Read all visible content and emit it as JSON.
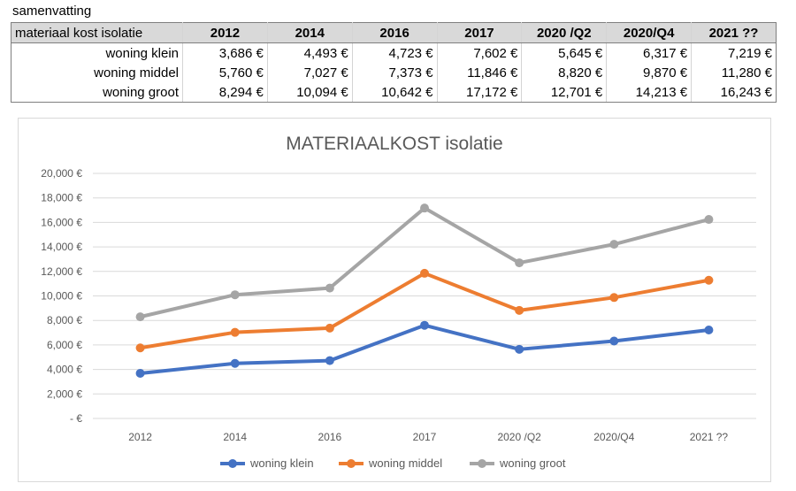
{
  "caption": "samenvatting",
  "table": {
    "header_label": "materiaal kost isolatie",
    "columns": [
      "2012",
      "2014",
      "2016",
      "2017",
      "2020 /Q2",
      "2020/Q4",
      "2021 ??"
    ],
    "rows": [
      {
        "label": "woning klein",
        "values": [
          "3,686 €",
          "4,493 €",
          "4,723 €",
          "7,602 €",
          "5,645 €",
          "6,317 €",
          "7,219 €"
        ]
      },
      {
        "label": "woning middel",
        "values": [
          "5,760 €",
          "7,027 €",
          "7,373 €",
          "11,846 €",
          "8,820 €",
          "9,870 €",
          "11,280 €"
        ]
      },
      {
        "label": "woning groot",
        "values": [
          "8,294 €",
          "10,094 €",
          "10,642 €",
          "17,172 €",
          "12,701 €",
          "14,213 €",
          "16,243 €"
        ]
      }
    ]
  },
  "chart_data": {
    "type": "line",
    "title": "MATERIAALKOST isolatie",
    "categories": [
      "2012",
      "2014",
      "2016",
      "2017",
      "2020 /Q2",
      "2020/Q4",
      "2021 ??"
    ],
    "series": [
      {
        "name": "woning klein",
        "color": "#4472c4",
        "values": [
          3686,
          4493,
          4723,
          7602,
          5645,
          6317,
          7219
        ]
      },
      {
        "name": "woning middel",
        "color": "#ed7d31",
        "values": [
          5760,
          7027,
          7373,
          11846,
          8820,
          9870,
          11280
        ]
      },
      {
        "name": "woning groot",
        "color": "#a5a5a5",
        "values": [
          8294,
          10094,
          10642,
          17172,
          12701,
          14213,
          16243
        ]
      }
    ],
    "ylim": [
      0,
      20000
    ],
    "y_ticks": [
      0,
      2000,
      4000,
      6000,
      8000,
      10000,
      12000,
      14000,
      16000,
      18000,
      20000
    ],
    "y_tick_labels": [
      "- €",
      "2,000 €",
      "4,000 €",
      "6,000 €",
      "8,000 €",
      "10,000 €",
      "12,000 €",
      "14,000 €",
      "16,000 €",
      "18,000 €",
      "20,000 €"
    ],
    "grid": true,
    "legend_position": "bottom",
    "grid_color": "#d9d9d9"
  }
}
